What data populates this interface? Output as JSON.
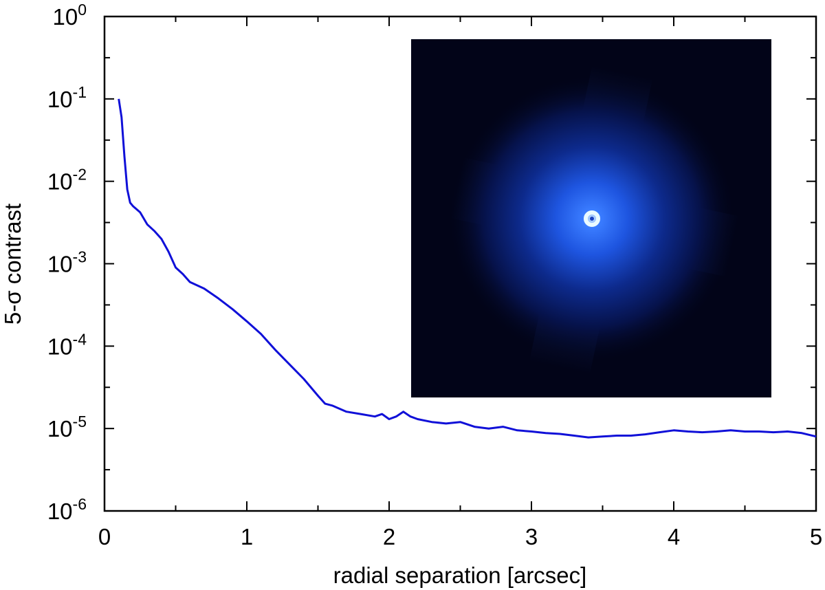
{
  "chart_data": {
    "type": "line",
    "title": "",
    "xlabel": "radial separation [arcsec]",
    "ylabel": "5-σ contrast",
    "xlim": [
      0,
      5
    ],
    "ylim": [
      1e-06,
      1
    ],
    "yscale": "log",
    "grid": false,
    "x_ticks": [
      0,
      1,
      2,
      3,
      4,
      5
    ],
    "x_tick_labels": [
      "0",
      "1",
      "2",
      "3",
      "4",
      "5"
    ],
    "y_ticks": [
      {
        "value": 1e-06,
        "base": "10",
        "exp": "-6"
      },
      {
        "value": 1e-05,
        "base": "10",
        "exp": "-5"
      },
      {
        "value": 0.0001,
        "base": "10",
        "exp": "-4"
      },
      {
        "value": 0.001,
        "base": "10",
        "exp": "-3"
      },
      {
        "value": 0.01,
        "base": "10",
        "exp": "-2"
      },
      {
        "value": 0.1,
        "base": "10",
        "exp": "-1"
      },
      {
        "value": 1,
        "base": "10",
        "exp": "0"
      }
    ],
    "series": [
      {
        "color": "#1010d8",
        "x": [
          0.1,
          0.12,
          0.14,
          0.16,
          0.18,
          0.2,
          0.25,
          0.3,
          0.35,
          0.4,
          0.45,
          0.5,
          0.55,
          0.6,
          0.7,
          0.8,
          0.9,
          1.0,
          1.1,
          1.2,
          1.3,
          1.4,
          1.5,
          1.55,
          1.6,
          1.7,
          1.8,
          1.9,
          1.95,
          2.0,
          2.05,
          2.1,
          2.15,
          2.2,
          2.3,
          2.4,
          2.5,
          2.6,
          2.7,
          2.8,
          2.9,
          3.0,
          3.1,
          3.2,
          3.3,
          3.4,
          3.5,
          3.6,
          3.7,
          3.8,
          3.9,
          4.0,
          4.1,
          4.2,
          4.3,
          4.4,
          4.5,
          4.6,
          4.7,
          4.8,
          4.9,
          5.0
        ],
        "y": [
          0.1,
          0.06,
          0.02,
          0.008,
          0.0055,
          0.005,
          0.0042,
          0.003,
          0.0025,
          0.002,
          0.0014,
          0.0009,
          0.00075,
          0.0006,
          0.0005,
          0.00038,
          0.00028,
          0.0002,
          0.00014,
          9e-05,
          6e-05,
          4e-05,
          2.5e-05,
          2e-05,
          1.9e-05,
          1.6e-05,
          1.5e-05,
          1.4e-05,
          1.5e-05,
          1.3e-05,
          1.4e-05,
          1.6e-05,
          1.4e-05,
          1.3e-05,
          1.2e-05,
          1.15e-05,
          1.2e-05,
          1.05e-05,
          1e-05,
          1.05e-05,
          9.5e-06,
          9.2e-06,
          8.8e-06,
          8.6e-06,
          8.2e-06,
          7.8e-06,
          8e-06,
          8.2e-06,
          8.2e-06,
          8.5e-06,
          9e-06,
          9.5e-06,
          9.2e-06,
          9e-06,
          9.2e-06,
          9.5e-06,
          9.2e-06,
          9.2e-06,
          9e-06,
          9.2e-06,
          8.8e-06,
          8e-06
        ]
      }
    ],
    "inset": {
      "kind": "image",
      "description_colors": {
        "background": "#020418",
        "halo": "#1f4fd8",
        "core": "#e8f8ff"
      }
    }
  }
}
